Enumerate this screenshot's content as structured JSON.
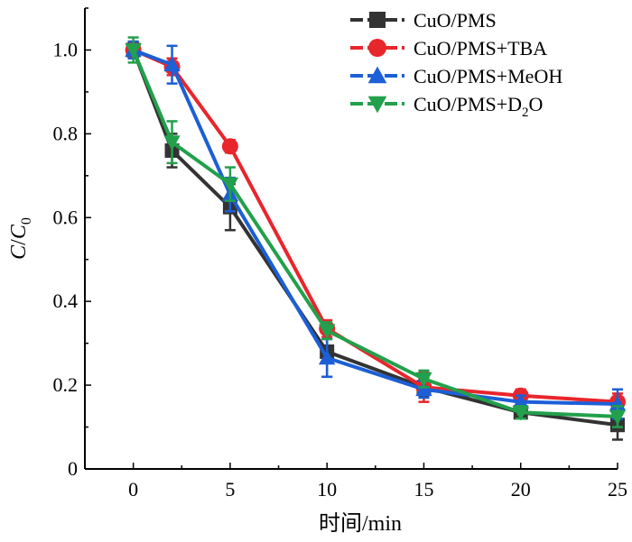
{
  "chart_data": {
    "type": "line",
    "xlabel": "时间/min",
    "ylabel": {
      "main": "C",
      "slash": "/",
      "sub_base": "C",
      "sub_index": "0"
    },
    "xlim": [
      -2.5,
      25
    ],
    "ylim": [
      0,
      1.1
    ],
    "xticks": [
      0,
      5,
      10,
      15,
      20,
      25
    ],
    "yticks": [
      0,
      0.2,
      0.4,
      0.6,
      0.8,
      1.0
    ],
    "ytick_labels": [
      "0",
      "0.2",
      "0.4",
      "0.6",
      "0.8",
      "1.0"
    ],
    "legend_position": "top-right",
    "x": [
      0,
      2,
      5,
      10,
      15,
      20,
      25
    ],
    "series": [
      {
        "name": "CuO/PMS",
        "legend_parts": [
          "CuO/PMS"
        ],
        "color": "#333333",
        "marker": "square",
        "values": [
          1.0,
          0.76,
          0.625,
          0.28,
          0.195,
          0.135,
          0.105
        ],
        "errors": [
          0.02,
          0.04,
          0.055,
          0.06,
          0.02,
          0.015,
          0.035
        ]
      },
      {
        "name": "CuO/PMS+TBA",
        "legend_parts": [
          "CuO/PMS+TBA"
        ],
        "color": "#e8262c",
        "marker": "circle",
        "values": [
          1.0,
          0.96,
          0.77,
          0.335,
          0.195,
          0.175,
          0.16
        ],
        "errors": [
          0.02,
          0.02,
          0.015,
          0.02,
          0.035,
          0.015,
          0.02
        ]
      },
      {
        "name": "CuO/PMS+MeOH",
        "legend_parts": [
          "CuO/PMS+MeOH"
        ],
        "color": "#1c5fd6",
        "marker": "triangle-up",
        "values": [
          1.0,
          0.965,
          0.655,
          0.265,
          0.19,
          0.16,
          0.155
        ],
        "errors": [
          0.02,
          0.045,
          0.04,
          0.045,
          0.02,
          0.015,
          0.035
        ]
      },
      {
        "name": "CuO/PMS+D2O",
        "legend_parts": [
          "CuO/PMS+D",
          "2",
          "O"
        ],
        "color": "#22a04b",
        "marker": "triangle-down",
        "values": [
          1.0,
          0.78,
          0.68,
          0.33,
          0.215,
          0.135,
          0.125
        ],
        "errors": [
          0.03,
          0.05,
          0.04,
          0.02,
          0.02,
          0.015,
          0.025
        ]
      }
    ]
  }
}
